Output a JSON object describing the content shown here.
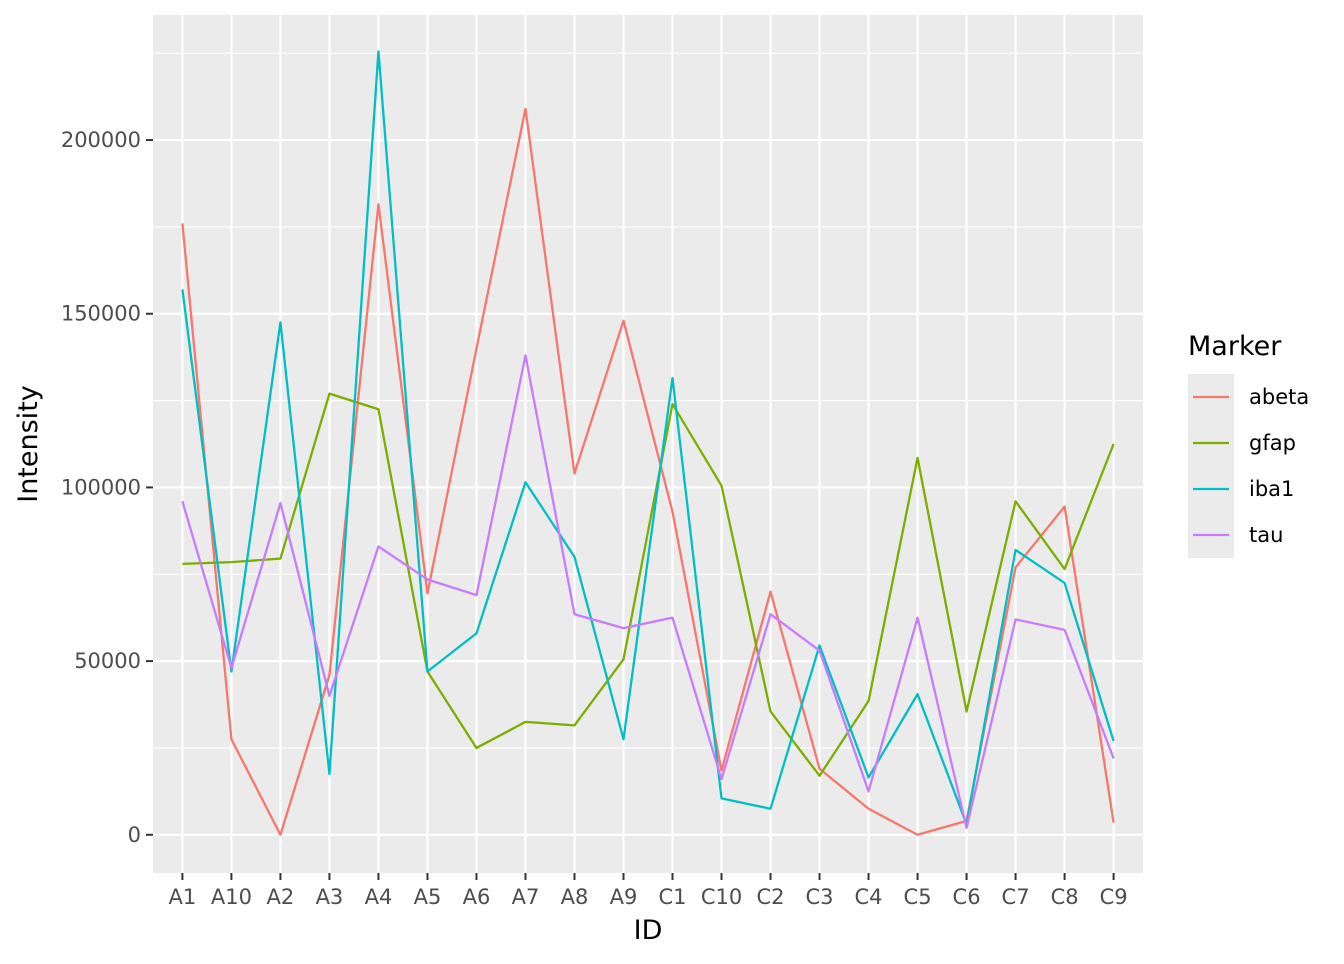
{
  "chart_data": {
    "type": "line",
    "xlabel": "ID",
    "ylabel": "Intensity",
    "categories": [
      "A1",
      "A10",
      "A2",
      "A3",
      "A4",
      "A5",
      "A6",
      "A7",
      "A8",
      "A9",
      "C1",
      "C10",
      "C2",
      "C3",
      "C4",
      "C5",
      "C6",
      "C7",
      "C8",
      "C9"
    ],
    "ylim": [
      -11000,
      236000
    ],
    "yticks": [
      0,
      50000,
      100000,
      150000,
      200000
    ],
    "ytick_labels": [
      "0",
      "50000",
      "100000",
      "150000",
      "200000"
    ],
    "grid": true,
    "panel_background": "#ebebeb",
    "legend": {
      "title": "Marker",
      "position": "right"
    },
    "series": [
      {
        "name": "abeta",
        "color": "#F8766D",
        "values": [
          176000,
          27500,
          0,
          46000,
          181500,
          69500,
          140000,
          209000,
          104000,
          148000,
          93000,
          18500,
          70000,
          19000,
          7500,
          0,
          4000,
          77000,
          94500,
          3500
        ]
      },
      {
        "name": "gfap",
        "color": "#7CAE00",
        "values": [
          78000,
          78500,
          79500,
          127000,
          122500,
          47000,
          25000,
          32500,
          31500,
          50500,
          124000,
          100500,
          35500,
          17000,
          38500,
          108500,
          35500,
          96000,
          76500,
          112500
        ]
      },
      {
        "name": "iba1",
        "color": "#00BFC4",
        "values": [
          157000,
          47000,
          147500,
          17500,
          225500,
          47000,
          58000,
          101500,
          80000,
          27500,
          131500,
          10500,
          7500,
          54500,
          16500,
          40500,
          3000,
          82000,
          72500,
          27000
        ]
      },
      {
        "name": "tau",
        "color": "#C77CFF",
        "values": [
          96000,
          48000,
          95500,
          40000,
          83000,
          73500,
          69000,
          138000,
          63500,
          59500,
          62500,
          16000,
          63500,
          53000,
          12500,
          62500,
          2000,
          62000,
          59000,
          22000
        ]
      }
    ]
  }
}
